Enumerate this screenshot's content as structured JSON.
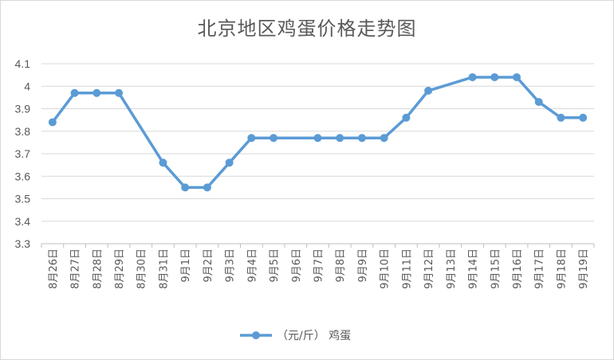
{
  "chart_data": {
    "type": "line",
    "title": "北京地区鸡蛋价格走势图",
    "xlabel": "",
    "ylabel": "",
    "categories": [
      "8月26日",
      "8月27日",
      "8月28日",
      "8月29日",
      "8月30日",
      "8月31日",
      "9月1日",
      "9月2日",
      "9月3日",
      "9月4日",
      "9月5日",
      "9月6日",
      "9月7日",
      "9月8日",
      "9月9日",
      "9月10日",
      "9月11日",
      "9月12日",
      "9月13日",
      "9月14日",
      "9月15日",
      "9月16日",
      "9月17日",
      "9月18日",
      "9月19日"
    ],
    "series": [
      {
        "name": "（元/斤） 鸡蛋",
        "color": "#5b9bd5",
        "values": [
          3.84,
          3.97,
          3.97,
          3.97,
          null,
          3.66,
          3.55,
          3.55,
          3.66,
          3.77,
          3.77,
          null,
          3.77,
          3.77,
          3.77,
          3.77,
          3.86,
          3.98,
          null,
          4.04,
          4.04,
          4.04,
          3.93,
          3.86,
          3.86
        ]
      }
    ],
    "ylim": [
      3.3,
      4.1
    ],
    "yticks": [
      "3.3",
      "3.4",
      "3.5",
      "3.6",
      "3.7",
      "3.8",
      "3.9",
      "4",
      "4.1"
    ],
    "grid": true,
    "legend_position": "bottom"
  }
}
